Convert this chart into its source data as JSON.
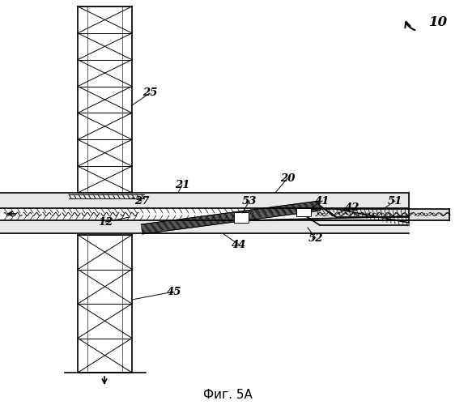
{
  "caption": "Фиг. 5А",
  "bg_color": "#ffffff",
  "lc": "#000000"
}
